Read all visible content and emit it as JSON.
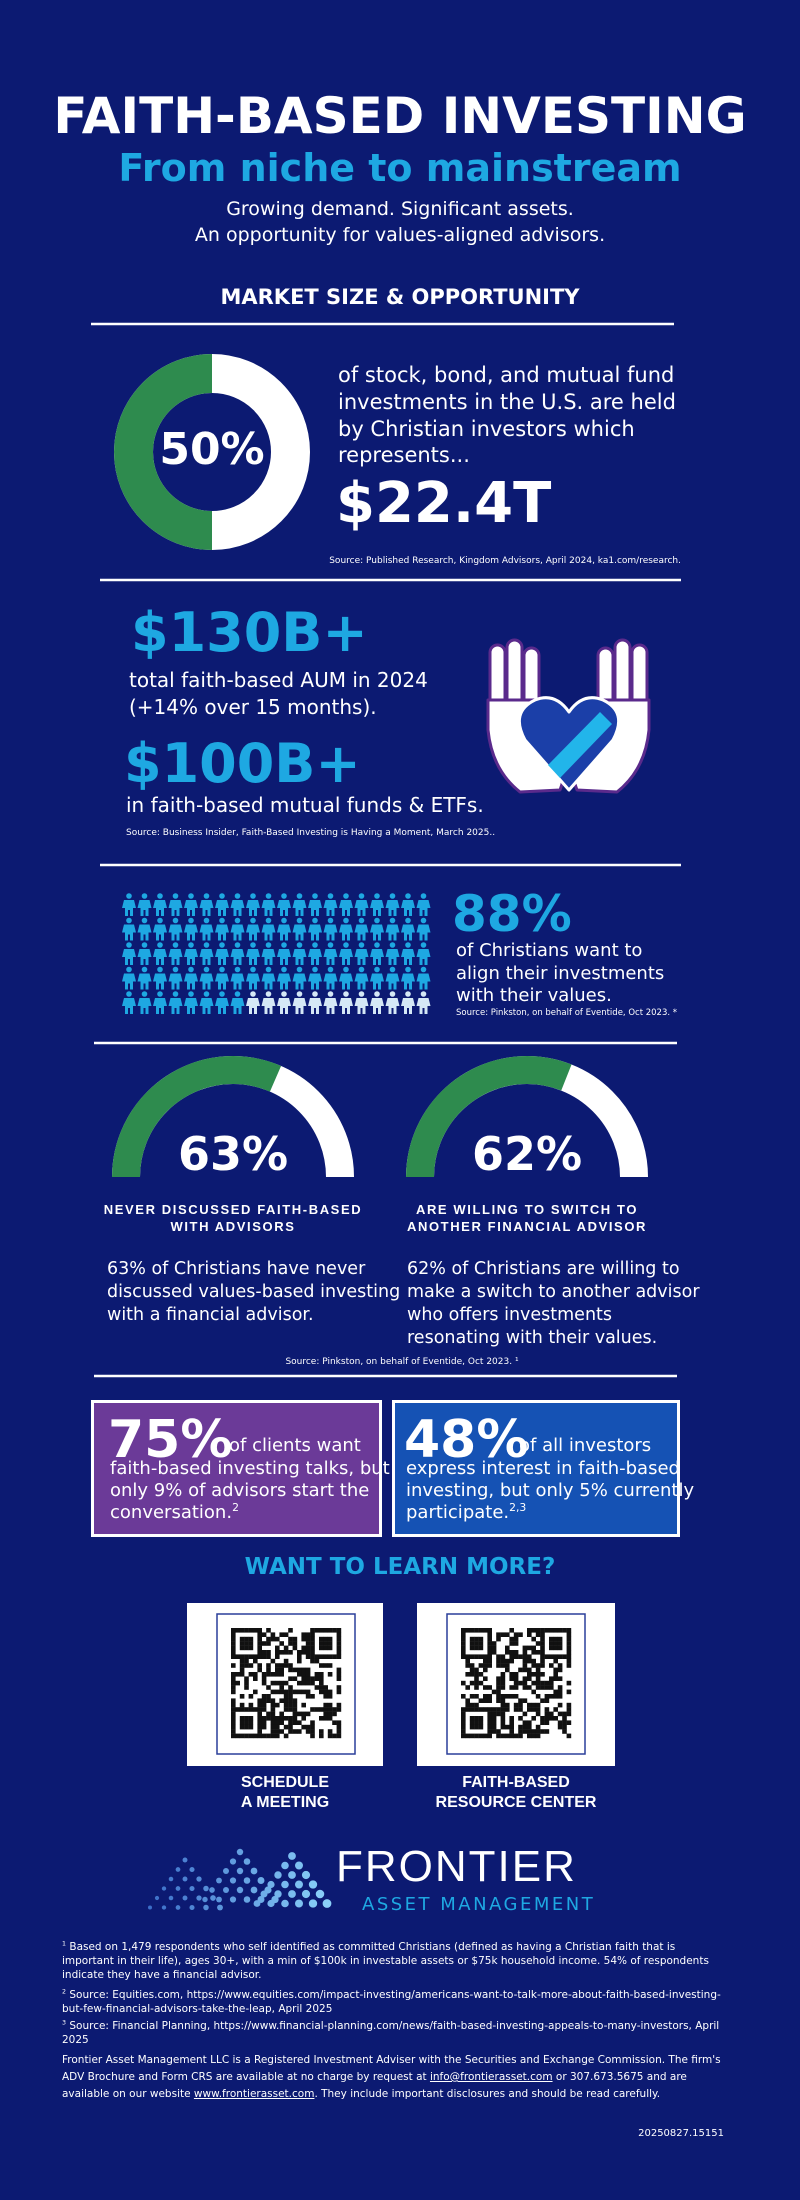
{
  "header": {
    "title": "FAITH-BASED INVESTING",
    "subtitle": "From niche to mainstream",
    "tagline": [
      "Growing demand. Significant assets.",
      "An opportunity for values-aligned advisors."
    ]
  },
  "market": {
    "heading": "MARKET SIZE & OPPORTUNITY",
    "percent": "50%",
    "description": [
      "of stock, bond, and mutual fund",
      "investments in the U.S. are held",
      "by Christian investors which",
      "represents..."
    ],
    "amount": "$22.4T",
    "source": "Source: Published Research, Kingdom Advisors, April 2024, ka1.com/research."
  },
  "aum": {
    "stat1": "$130B+",
    "text1": [
      "total faith-based AUM in 2024",
      "(+14% over 15 months)."
    ],
    "stat2": "$100B+",
    "text2": "in faith-based mutual funds & ETFs.",
    "source": "Source: Business Insider, Faith-Based Investing is Having a Moment, March 2025.."
  },
  "alignment": {
    "percent": "88%",
    "text": [
      "of Christians want to",
      "align their investments",
      "with their values."
    ],
    "source": "Source: Pinkston, on behalf of Eventide, Oct 2023. *"
  },
  "gauges": [
    {
      "percent": "63%",
      "label": [
        "NEVER DISCUSSED FAITH-BASED",
        "WITH ADVISORS"
      ],
      "text": [
        "63% of Christians have never",
        "discussed values-based investing",
        "with a financial advisor."
      ]
    },
    {
      "percent": "62%",
      "label": [
        "ARE WILLING TO SWITCH TO",
        "ANOTHER FINANCIAL ADVISOR"
      ],
      "text": [
        "62% of Christians are willing to",
        "make a switch to another advisor",
        "who offers investments",
        "resonating with their values."
      ]
    }
  ],
  "gauges_source": "Source: Pinkston, on behalf of Eventide, Oct 2023. ¹",
  "callouts": [
    {
      "percent": "75%",
      "lead": "of clients want",
      "lines": [
        "faith-based investing talks, but",
        "only 9% of advisors start the",
        "conversation."
      ],
      "note": "2"
    },
    {
      "percent": "48%",
      "lead": "of all investors",
      "lines": [
        "express interest in faith-based",
        "investing, but only 5% currently",
        "participate."
      ],
      "note": "2,3"
    }
  ],
  "cta": {
    "heading": "WANT TO LEARN MORE?",
    "links": [
      [
        "SCHEDULE",
        "A MEETING"
      ],
      [
        "FAITH-BASED",
        "RESOURCE CENTER"
      ]
    ]
  },
  "logo": {
    "name": "FRONTIER",
    "tagline": "ASSET MANAGEMENT"
  },
  "footnotes": [
    {
      "marker": "1",
      "text": "Based on 1,479 respondents who self identified as committed Christians (defined as having a Christian faith that is important in their life), ages 30+, with a min of $100k in investable assets or $75k household income. 54% of respondents indicate they have a financial advisor."
    },
    {
      "marker": "2",
      "text": "Source: Equities.com,  https://www.equities.com/impact-investing/americans-want-to-talk-more-about-faith-based-investing-but-few-financial-advisors-take-the-leap, April 2025"
    },
    {
      "marker": "3",
      "text": "Source: Financial Planning, https://www.financial-planning.com/news/faith-based-investing-appeals-to-many-investors, April 2025"
    }
  ],
  "disclosure": {
    "before": "Frontier Asset Management LLC is a Registered Investment Adviser with the Securities and Exchange Commission. The firm's ADV Brochure and Form CRS are available at no charge by request at ",
    "email": "info@frontierasset.com",
    "middle": " or 307.673.5675 and  are available on our website ",
    "website": "www.frontierasset.com",
    "after": ". They include important disclosures and should be read carefully."
  },
  "code": "20250827.15151"
}
